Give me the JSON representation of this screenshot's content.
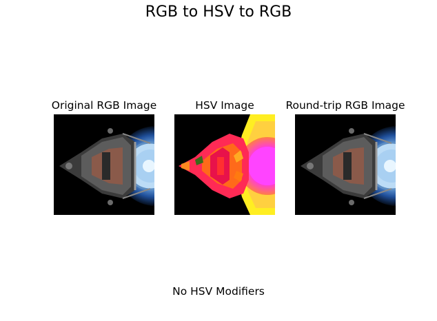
{
  "figure": {
    "title": "RGB to HSV to RGB",
    "caption": "No HSV Modifiers"
  },
  "panels": [
    {
      "title": "Original RGB Image",
      "image": "spacecraft-rgb"
    },
    {
      "title": "HSV Image",
      "image": "spacecraft-hsv-false-color"
    },
    {
      "title": "Round-trip RGB Image",
      "image": "spacecraft-rgb-roundtrip"
    }
  ]
}
